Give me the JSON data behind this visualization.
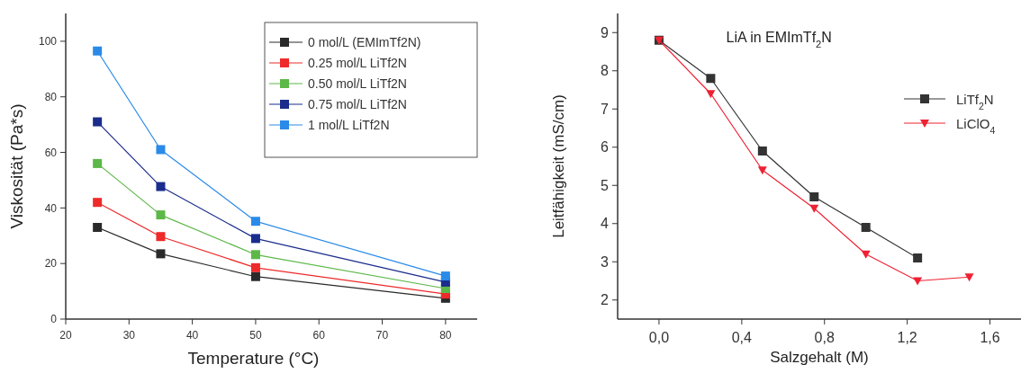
{
  "chart_data": [
    {
      "type": "line",
      "xlabel": "Temperature (°C)",
      "ylabel": "Viskosität (Pa*s)",
      "x": [
        25,
        35,
        50,
        80
      ],
      "xlim": [
        20,
        85
      ],
      "xticks": [
        20,
        30,
        40,
        50,
        60,
        70,
        80
      ],
      "ylim": [
        0,
        110
      ],
      "yticks": [
        0,
        20,
        40,
        60,
        80,
        100
      ],
      "marker": "square",
      "legend": "top right",
      "grid": false,
      "series": [
        {
          "name": "0 mol/L (EMImTf2N)",
          "color": "#2a2a2a",
          "values": [
            33,
            23.5,
            15.3,
            7.5
          ]
        },
        {
          "name": "0.25 mol/L LiTf2N",
          "color": "#ee2a2a",
          "values": [
            42,
            29.7,
            18.5,
            9
          ]
        },
        {
          "name": "0.50 mol/L LiTf2N",
          "color": "#5cb848",
          "values": [
            56,
            37.5,
            23.2,
            11
          ]
        },
        {
          "name": "0.75 mol/L LiTf2N",
          "color": "#1a2c8c",
          "values": [
            71,
            47.7,
            29,
            13.3
          ]
        },
        {
          "name": "1 mol/L LiTf2N",
          "color": "#2a8ae8",
          "values": [
            96.5,
            61,
            35.2,
            15.5
          ]
        }
      ]
    },
    {
      "type": "line",
      "title": "LiA in EMImTf$_{2}$N",
      "xlabel": "Salzgehalt (M)",
      "ylabel": "Leitfähigkeit (mS/cm)",
      "xlim": [
        -0.2,
        1.75
      ],
      "xticks": [
        {
          "value": 0,
          "label": "0,0"
        },
        {
          "value": 0.4,
          "label": "0,4"
        },
        {
          "value": 0.8,
          "label": "0,8"
        },
        {
          "value": 1.2,
          "label": "1,2"
        },
        {
          "value": 1.6,
          "label": "1,6"
        }
      ],
      "ylim": [
        1.5,
        9.5
      ],
      "yticks": [
        2,
        3,
        4,
        5,
        6,
        7,
        8,
        9
      ],
      "legend": "right",
      "grid": false,
      "series": [
        {
          "name": "LiTf$_{2}$N",
          "color": "#333333",
          "marker": "square",
          "x": [
            0,
            0.25,
            0.5,
            0.75,
            1,
            1.25
          ],
          "values": [
            8.8,
            7.8,
            5.9,
            4.7,
            3.9,
            3.1
          ]
        },
        {
          "name": "LiClO$_{4}$",
          "color": "#ee2233",
          "marker": "triangle",
          "x": [
            0,
            0.25,
            0.5,
            0.75,
            1,
            1.25,
            1.5
          ],
          "values": [
            8.8,
            7.4,
            5.4,
            4.4,
            3.2,
            2.5,
            2.6
          ]
        }
      ]
    }
  ]
}
